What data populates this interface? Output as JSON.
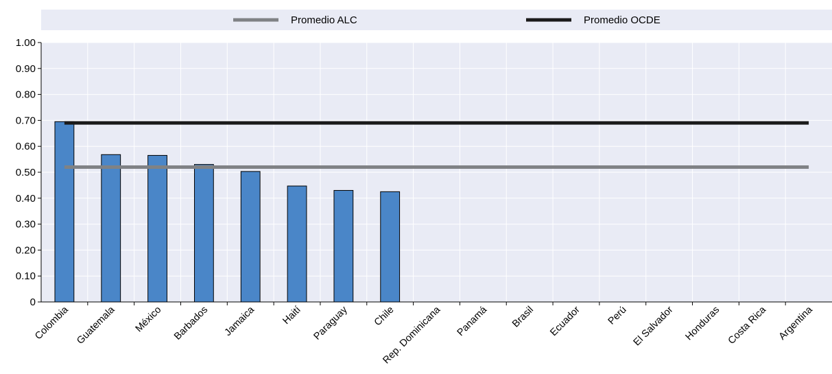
{
  "chart_data": {
    "type": "bar",
    "categories": [
      "Colombia",
      "Guatemala",
      "México",
      "Barbados",
      "Jamaica",
      "Haití",
      "Paraguay",
      "Chile",
      "Rep. Dominicana",
      "Panamá",
      "Brasil",
      "Ecuador",
      "Perú",
      "El Salvador",
      "Honduras",
      "Costa Rica",
      "Argentina"
    ],
    "values": [
      0.695,
      0.568,
      0.565,
      0.53,
      0.503,
      0.447,
      0.43,
      0.425,
      null,
      null,
      null,
      null,
      null,
      null,
      null,
      null,
      null
    ],
    "reference_lines": [
      {
        "name": "Promedio ALC",
        "value": 0.52,
        "color": "#808285"
      },
      {
        "name": "Promedio OCDE",
        "value": 0.69,
        "color": "#1a1a1a"
      }
    ],
    "yticks": [
      "0",
      "0.10",
      "0.20",
      "0.30",
      "0.40",
      "0.50",
      "0.60",
      "0.70",
      "0.80",
      "0.90",
      "1.00"
    ],
    "ylim": [
      0,
      1
    ],
    "grid": true,
    "legend_position": "top",
    "title": "",
    "xlabel": "",
    "ylabel": "",
    "colors": {
      "bar": "#4a86c8",
      "bar_edge": "#000000",
      "plot_bg": "#e9ebf5",
      "grid": "#ffffff",
      "legend_bg": "#e9ebf5"
    }
  }
}
